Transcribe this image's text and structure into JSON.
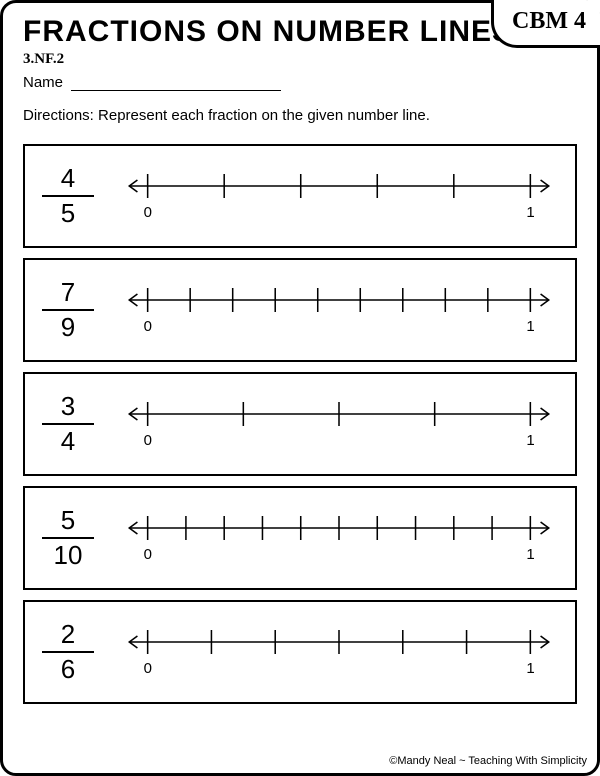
{
  "header": {
    "title": "FRACTIONS ON NUMBER LINES",
    "badge": "CBM 4",
    "standard": "3.NF.2",
    "name_label": "Name"
  },
  "directions": "Directions:  Represent each fraction on the given number line.",
  "axis": {
    "start_label": "0",
    "end_label": "1",
    "stroke": "#000000",
    "stroke_width": 1.5
  },
  "problems": [
    {
      "numerator": "4",
      "denominator": "5",
      "divisions": 5
    },
    {
      "numerator": "7",
      "denominator": "9",
      "divisions": 9
    },
    {
      "numerator": "3",
      "denominator": "4",
      "divisions": 4
    },
    {
      "numerator": "5",
      "denominator": "10",
      "divisions": 10
    },
    {
      "numerator": "2",
      "denominator": "6",
      "divisions": 6
    }
  ],
  "footer": "©Mandy Neal ~ Teaching With Simplicity"
}
